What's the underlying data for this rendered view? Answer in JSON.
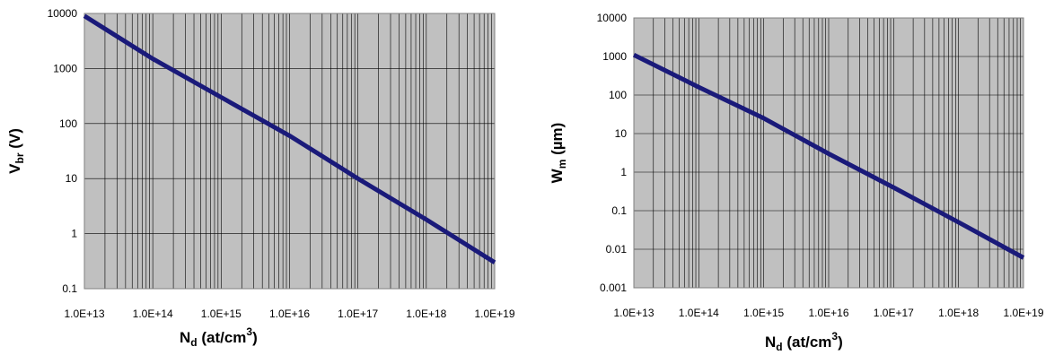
{
  "colors": {
    "plot_background": "#c0c0c0",
    "grid": "#000000",
    "line": "#1a1a7a"
  },
  "chart_data": [
    {
      "type": "line",
      "title": "",
      "xscale": "log",
      "yscale": "log",
      "xlim": [
        10000000000000.0,
        1e+19
      ],
      "ylim": [
        0.1,
        10000
      ],
      "grid": true,
      "x_tick_labels": [
        "1.0E+13",
        "1.0E+14",
        "1.0E+15",
        "1.0E+16",
        "1.0E+17",
        "1.0E+18",
        "1.0E+19"
      ],
      "y_tick_labels": [
        "0.1",
        "1",
        "10",
        "100",
        "1000",
        "10000"
      ],
      "xlabel": {
        "main": "N",
        "sub": "d",
        "mid": " (at/cm",
        "sup": "3",
        "end": ")"
      },
      "ylabel": {
        "main": "V",
        "sub": "br",
        "end": " (V)"
      },
      "series": [
        {
          "x": [
            10000000000000.0,
            100000000000000.0,
            1000000000000000.0,
            1e+16,
            1e+17,
            1e+18,
            1e+19
          ],
          "y": [
            9000,
            1500,
            300,
            60,
            10,
            1.8,
            0.3
          ]
        }
      ]
    },
    {
      "type": "line",
      "title": "",
      "xscale": "log",
      "yscale": "log",
      "xlim": [
        10000000000000.0,
        1e+19
      ],
      "ylim": [
        0.001,
        10000
      ],
      "grid": true,
      "x_tick_labels": [
        "1.0E+13",
        "1.0E+14",
        "1.0E+15",
        "1.0E+16",
        "1.0E+17",
        "1.0E+18",
        "1.0E+19"
      ],
      "y_tick_labels": [
        "0.001",
        "0.01",
        "0.1",
        "1",
        "10",
        "100",
        "1000",
        "10000"
      ],
      "xlabel": {
        "main": "N",
        "sub": "d",
        "mid": " (at/cm",
        "sup": "3",
        "end": ")"
      },
      "ylabel": {
        "main": "W",
        "sub": "m",
        "end": " (µm)"
      },
      "series": [
        {
          "x": [
            10000000000000.0,
            100000000000000.0,
            1000000000000000.0,
            1e+16,
            1e+17,
            1e+18,
            1e+19
          ],
          "y": [
            1100,
            160,
            25,
            3,
            0.4,
            0.05,
            0.006
          ]
        }
      ]
    }
  ]
}
